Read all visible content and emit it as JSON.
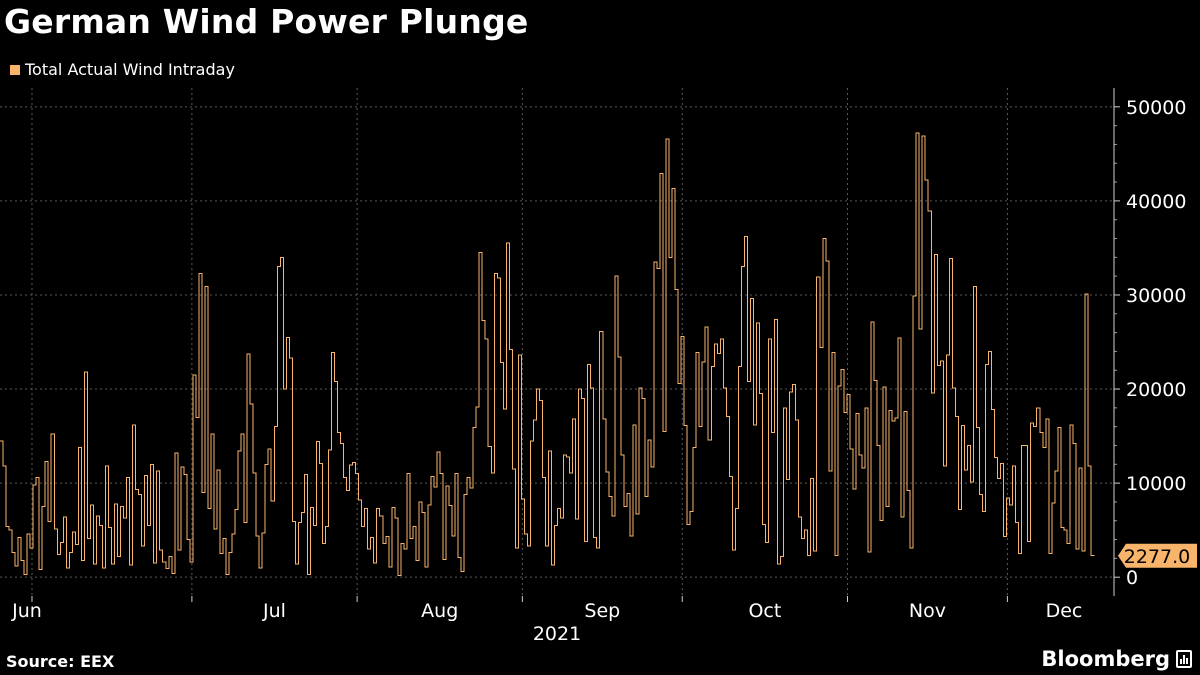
{
  "title": "German Wind Power Plunge",
  "source": "Source: EEX",
  "brand": "Bloomberg",
  "colors": {
    "series": "#f7b46a",
    "background": "#000000",
    "grid": "#5a5a5a",
    "text": "#ffffff"
  },
  "chart_data": {
    "type": "line",
    "step": true,
    "title": "German Wind Power Plunge",
    "xlabel": "2021",
    "ylabel": "",
    "x_start": "2021-05-26",
    "x_end": "2021-12-21",
    "ylim": [
      -2000,
      52000
    ],
    "yticks": [
      0,
      10000,
      20000,
      30000,
      40000,
      50000
    ],
    "ytick_labels": [
      "0",
      "10000",
      "20000",
      "30000",
      "40000",
      "50000"
    ],
    "month_ticks": [
      {
        "label": "Jun",
        "date": "2021-06-01"
      },
      {
        "label": "Jul",
        "date": "2021-07-01"
      },
      {
        "label": "Aug",
        "date": "2021-08-01"
      },
      {
        "label": "Sep",
        "date": "2021-09-01"
      },
      {
        "label": "Oct",
        "date": "2021-10-01"
      },
      {
        "label": "Nov",
        "date": "2021-11-01"
      },
      {
        "label": "Dec",
        "date": "2021-12-01"
      }
    ],
    "year_label": "2021",
    "grid": true,
    "legend_position": "top-left",
    "last_value_label": "2277.0",
    "series": [
      {
        "name": "Total Actual Wind Intraday",
        "values": [
          14500,
          11800,
          5400,
          5000,
          2600,
          1200,
          4200,
          1800,
          300,
          4600,
          3100,
          9800,
          10600,
          800,
          7500,
          12300,
          5900,
          15200,
          5100,
          2400,
          3700,
          6400,
          1000,
          2600,
          4800,
          3500,
          13800,
          1800,
          21800,
          4100,
          7700,
          1400,
          6500,
          5500,
          1000,
          11800,
          5300,
          1400,
          7800,
          2200,
          7500,
          6300,
          10600,
          1300,
          16200,
          9300,
          8800,
          3300,
          10800,
          5500,
          12000,
          1500,
          11300,
          2900,
          1600,
          900,
          2200,
          400,
          13200,
          2900,
          11700,
          10900,
          4000,
          1600,
          21500,
          17000,
          32300,
          9000,
          30900,
          7300,
          15200,
          5100,
          11400,
          2500,
          4100,
          300,
          2600,
          4600,
          7200,
          13400,
          15200,
          5800,
          23700,
          18400,
          11100,
          4400,
          1000,
          4700,
          12000,
          13600,
          8100,
          16000,
          33000,
          34000,
          20000,
          25500,
          23300,
          5900,
          1400,
          5800,
          6900,
          10900,
          300,
          7400,
          5500,
          14400,
          12100,
          3600,
          5400,
          13500,
          23900,
          20800,
          15400,
          14200,
          10600,
          9200,
          11900,
          12200,
          11000,
          8200,
          5400,
          7300,
          3000,
          4200,
          1500,
          7300,
          6500,
          3600,
          4300,
          1100,
          7400,
          6300,
          200,
          3600,
          3000,
          11000,
          4100,
          5400,
          1800,
          8000,
          6900,
          1100,
          7700,
          10700,
          9600,
          13300,
          11000,
          1900,
          9700,
          7600,
          4400,
          11000,
          2100,
          600,
          8800,
          10600,
          9500,
          15900,
          18100,
          34500,
          27300,
          25300,
          13900,
          11100,
          32300,
          31800,
          22800,
          17900,
          35500,
          24200,
          11500,
          3100,
          23600,
          8300,
          4600,
          3300,
          14500,
          16700,
          20000,
          18800,
          10600,
          3300,
          13400,
          1300,
          5500,
          7300,
          6300,
          13000,
          12800,
          11100,
          16800,
          6200,
          20000,
          19000,
          3800,
          22600,
          20100,
          4200,
          3100,
          26100,
          16800,
          11200,
          8600,
          6500,
          32000,
          23400,
          13000,
          7500,
          8900,
          4400,
          16200,
          6700,
          20100,
          19000,
          8600,
          14600,
          11700,
          33500,
          32800,
          42900,
          15500,
          46600,
          34000,
          41300,
          30600,
          20600,
          25600,
          16100,
          5600,
          7000,
          13800,
          23900,
          16000,
          22900,
          26600,
          14600,
          22400,
          24800,
          23800,
          25300,
          20100,
          17100,
          10700,
          2900,
          7300,
          22400,
          33000,
          36200,
          20800,
          29600,
          16200,
          27000,
          19500,
          5600,
          3700,
          25300,
          15400,
          27400,
          1400,
          2200,
          18000,
          10400,
          19700,
          20500,
          16700,
          6400,
          4100,
          5000,
          2300,
          10500,
          2800,
          31900,
          24400,
          36000,
          33600,
          11300,
          23900,
          2300,
          20300,
          22100,
          17500,
          19400,
          13600,
          9400,
          17400,
          13000,
          11600,
          18000,
          2700,
          27100,
          20900,
          14000,
          6000,
          20200,
          7500,
          17700,
          16600,
          16900,
          25400,
          6400,
          17600,
          9200,
          3100,
          29900,
          47200,
          26400,
          46900,
          42200,
          38900,
          19600,
          34300,
          22500,
          23000,
          11800,
          23600,
          33900,
          20100,
          17100,
          7200,
          16100,
          11400,
          14000,
          10100,
          30900,
          15900,
          8800,
          7000,
          22600,
          24000,
          17800,
          12700,
          10500,
          12100,
          4300,
          8400,
          7700,
          11800,
          5800,
          2500,
          14000,
          14000,
          3800,
          16400,
          16000,
          18000,
          15400,
          13800,
          16800,
          2500,
          7900,
          11300,
          15900,
          5300,
          5000,
          3600,
          16200,
          14200,
          3000,
          11600,
          2800,
          30100,
          11800,
          2300,
          2277
        ]
      }
    ]
  }
}
